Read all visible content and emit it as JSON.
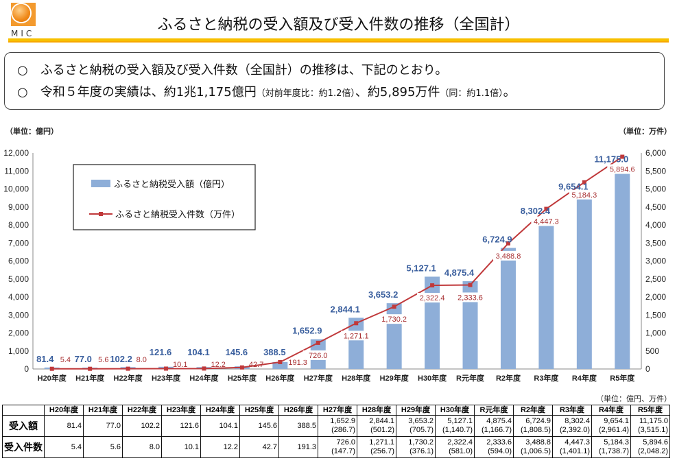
{
  "logo": {
    "text": "MIC"
  },
  "title": "ふるさと納税の受入額及び受入件数の推移（全国計）",
  "notes": [
    {
      "bullet": "○",
      "text": "ふるさと納税の受入額及び受入件数（全国計）の推移は、下記のとおり。"
    },
    {
      "bullet": "○",
      "text": "令和５年度の実績は、約1兆1,175億円",
      "small": "（対前年度比：約1.2倍）",
      "text2": "、約5,895万件",
      "small2": "（同：約1.1倍）",
      "text3": "。"
    }
  ],
  "colors": {
    "bar": "#8eaed8",
    "line": "#c0393b",
    "bar_label": "#3a5f9e",
    "line_label": "#a83032",
    "accent": "#f7c000"
  },
  "chart_data": {
    "type": "bar+line",
    "categories": [
      "H20年度",
      "H21年度",
      "H22年度",
      "H23年度",
      "H24年度",
      "H25年度",
      "H26年度",
      "H27年度",
      "H28年度",
      "H29年度",
      "H30年度",
      "R元年度",
      "R2年度",
      "R3年度",
      "R4年度",
      "R5年度"
    ],
    "series": [
      {
        "name": "ふるさと納税受入額（億円）",
        "type": "bar",
        "axis": "left",
        "values": [
          81.4,
          77.0,
          102.2,
          121.6,
          104.1,
          145.6,
          388.5,
          1652.9,
          2844.1,
          3653.2,
          5127.1,
          4875.4,
          6724.9,
          8302.4,
          9654.1,
          11175.0
        ],
        "labels": [
          "81.4",
          "77.0",
          "102.2",
          "121.6",
          "104.1",
          "145.6",
          "388.5",
          "1,652.9",
          "2,844.1",
          "3,653.2",
          "5,127.1",
          "4,875.4",
          "6,724.9",
          "8,302.4",
          "9,654.1",
          "11,175.0"
        ]
      },
      {
        "name": "ふるさと納税受入件数（万件）",
        "type": "line",
        "axis": "right",
        "values": [
          5.4,
          5.6,
          8.0,
          10.1,
          12.2,
          42.7,
          191.3,
          726.0,
          1271.1,
          1730.2,
          2322.4,
          2333.6,
          3488.8,
          4447.3,
          5184.3,
          5894.6
        ],
        "labels": [
          "5.4",
          "5.6",
          "8.0",
          "10.1",
          "12.2",
          "42.7",
          "191.3",
          "726.0",
          "1,271.1",
          "1,730.2",
          "2,322.4",
          "2,333.6",
          "3,488.8",
          "4,447.3",
          "5,184.3",
          "5,894.6"
        ]
      }
    ],
    "left_unit": "（単位：億円）",
    "right_unit": "（単位：万件）",
    "ylim_left": [
      0,
      12000
    ],
    "ylim_right": [
      0,
      6000
    ],
    "left_ticks": [
      "0",
      "1,000",
      "2,000",
      "3,000",
      "4,000",
      "5,000",
      "6,000",
      "7,000",
      "8,000",
      "9,000",
      "10,000",
      "11,000",
      "12,000"
    ],
    "right_ticks": [
      "0",
      "500",
      "1,000",
      "1,500",
      "2,000",
      "2,500",
      "3,000",
      "3,500",
      "4,000",
      "4,500",
      "5,000",
      "5,500",
      "6,000"
    ],
    "legend_placement": "top-left",
    "grid": false
  },
  "table": {
    "unit": "（単位：億円、万件）",
    "headers": [
      "H20年度",
      "H21年度",
      "H22年度",
      "H23年度",
      "H24年度",
      "H25年度",
      "H26年度",
      "H27年度",
      "H28年度",
      "H29年度",
      "H30年度",
      "R元年度",
      "R2年度",
      "R3年度",
      "R4年度",
      "R5年度"
    ],
    "rows": [
      {
        "label": "受入額",
        "values": [
          "81.4",
          "77.0",
          "102.2",
          "121.6",
          "104.1",
          "145.6",
          "388.5",
          "1,652.9",
          "2,844.1",
          "3,653.2",
          "5,127.1",
          "4,875.4",
          "6,724.9",
          "8,302.4",
          "9,654.1",
          "11,175.0"
        ],
        "sub": [
          "",
          "",
          "",
          "",
          "",
          "",
          "",
          "(286.7)",
          "(501.2)",
          "(705.7)",
          "(1,140.7)",
          "(1,166.7)",
          "(1,808.5)",
          "(2,392.0)",
          "(2,961.4)",
          "(3,515.1)"
        ]
      },
      {
        "label": "受入件数",
        "values": [
          "5.4",
          "5.6",
          "8.0",
          "10.1",
          "12.2",
          "42.7",
          "191.3",
          "726.0",
          "1,271.1",
          "1,730.2",
          "2,322.4",
          "2,333.6",
          "3,488.8",
          "4,447.3",
          "5,184.3",
          "5,894.6"
        ],
        "sub": [
          "",
          "",
          "",
          "",
          "",
          "",
          "",
          "(147.7)",
          "(256.7)",
          "(376.1)",
          "(581.0)",
          "(594.0)",
          "(1,006.5)",
          "(1,401.1)",
          "(1,738.7)",
          "(2,048.2)"
        ]
      }
    ]
  }
}
